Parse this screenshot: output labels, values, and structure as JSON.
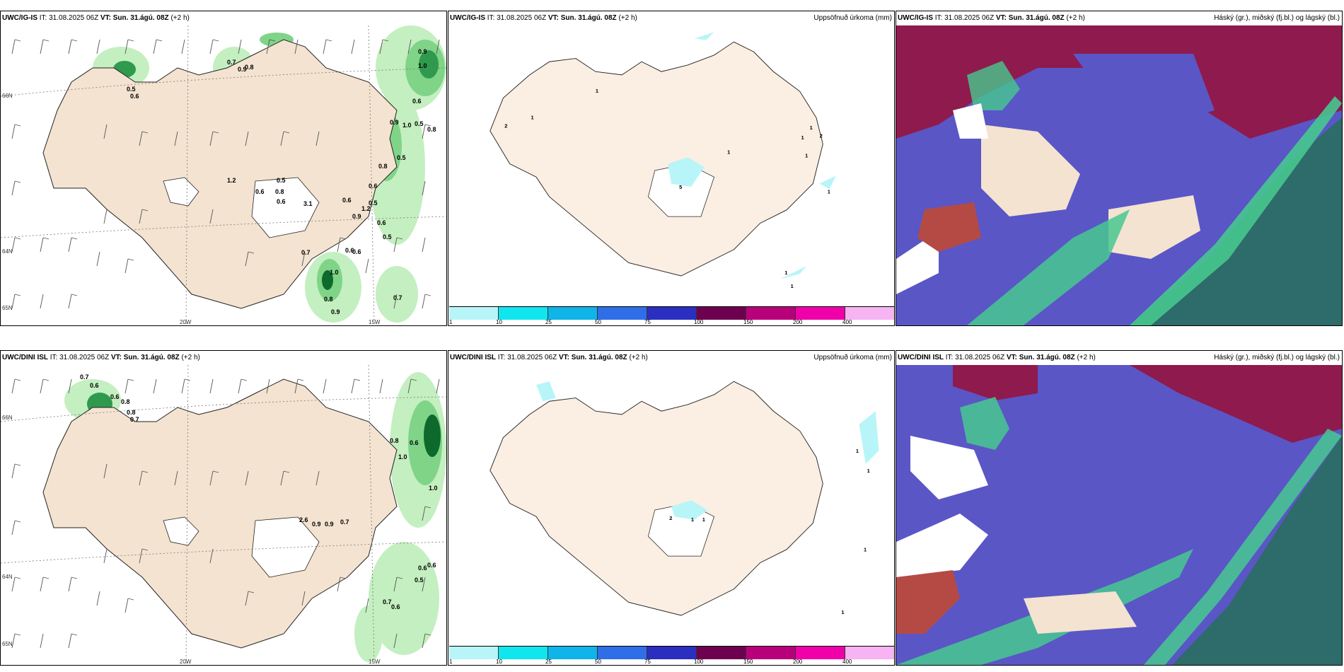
{
  "rows": [
    {
      "model": "UWC/IG-IS",
      "it_label": "IT: 31.08.2025 06Z",
      "vt_label": "VT: Sun. 31.ágú. 08Z",
      "lead": "(+2 h)"
    },
    {
      "model": "UWC/DINI ISL",
      "it_label": "IT: 31.08.2025 06Z",
      "vt_label": "VT: Sun. 31.ágú. 08Z",
      "lead": "(+2 h)"
    }
  ],
  "precip_title": "Uppsöfnuð úrkoma (mm)",
  "cloud_title": "Háský (gr.), miðský (fj.bl.) og lágský (bl.)",
  "colorbar": {
    "labels": [
      "1",
      "10",
      "25",
      "50",
      "75",
      "100",
      "150",
      "200",
      "400"
    ],
    "colors": [
      "#b8f5f8",
      "#10e6ee",
      "#0fb4e8",
      "#2f6ee6",
      "#2b2fbf",
      "#6e0050",
      "#b8007a",
      "#f000a8",
      "#f6b4f2"
    ]
  },
  "axis": {
    "lon_20": "20W",
    "lon_15": "15W",
    "lat_66": "66N",
    "lat_64": "64N",
    "lat_65": "65N"
  },
  "wind_top_labels": [
    "0.7",
    "0.9",
    "0.8",
    "0.9",
    "1.0",
    "0.5",
    "0.6",
    "0.6",
    "0.9",
    "1.0",
    "0.5",
    "1.2",
    "0.5",
    "0.6",
    "0.8",
    "0.6",
    "3.1",
    "0.6",
    "1.2",
    "0.9",
    "0.8",
    "0.5",
    "0.6",
    "0.6",
    "0.5",
    "0.5",
    "0.7",
    "0.6",
    "0.6",
    "1.0",
    "0.8",
    "0.9",
    "0.7",
    "0.8"
  ],
  "wind_bottom_labels": [
    "0.7",
    "0.6",
    "0.6",
    "0.8",
    "0.8",
    "0.7",
    "0.8",
    "0.6",
    "1.0",
    "1.0",
    "2.6",
    "0.9",
    "0.9",
    "0.7",
    "0.6",
    "0.6",
    "0.5",
    "0.7",
    "0.6"
  ],
  "precip_top_labels": [
    "1",
    "1",
    "2",
    "1",
    "1",
    "1",
    "2",
    "1",
    "1",
    "1",
    "1",
    "5"
  ],
  "precip_bottom_labels": [
    "1",
    "1",
    "1",
    "1",
    "2",
    "1",
    "1"
  ],
  "palette": {
    "land": "#f3e3d0",
    "land_alt": "#eeddca",
    "green_light": "#c4efc0",
    "green_mid": "#7fd488",
    "green_dark": "#2f9a4d",
    "green_deep": "#0e6a2c",
    "cyan_light": "#b8f5f8",
    "cloud_high": "#5a56c6",
    "cloud_mid": "#8f1a4d",
    "cloud_low": "#2e6b6b",
    "cloud_teal": "#46c88f"
  }
}
